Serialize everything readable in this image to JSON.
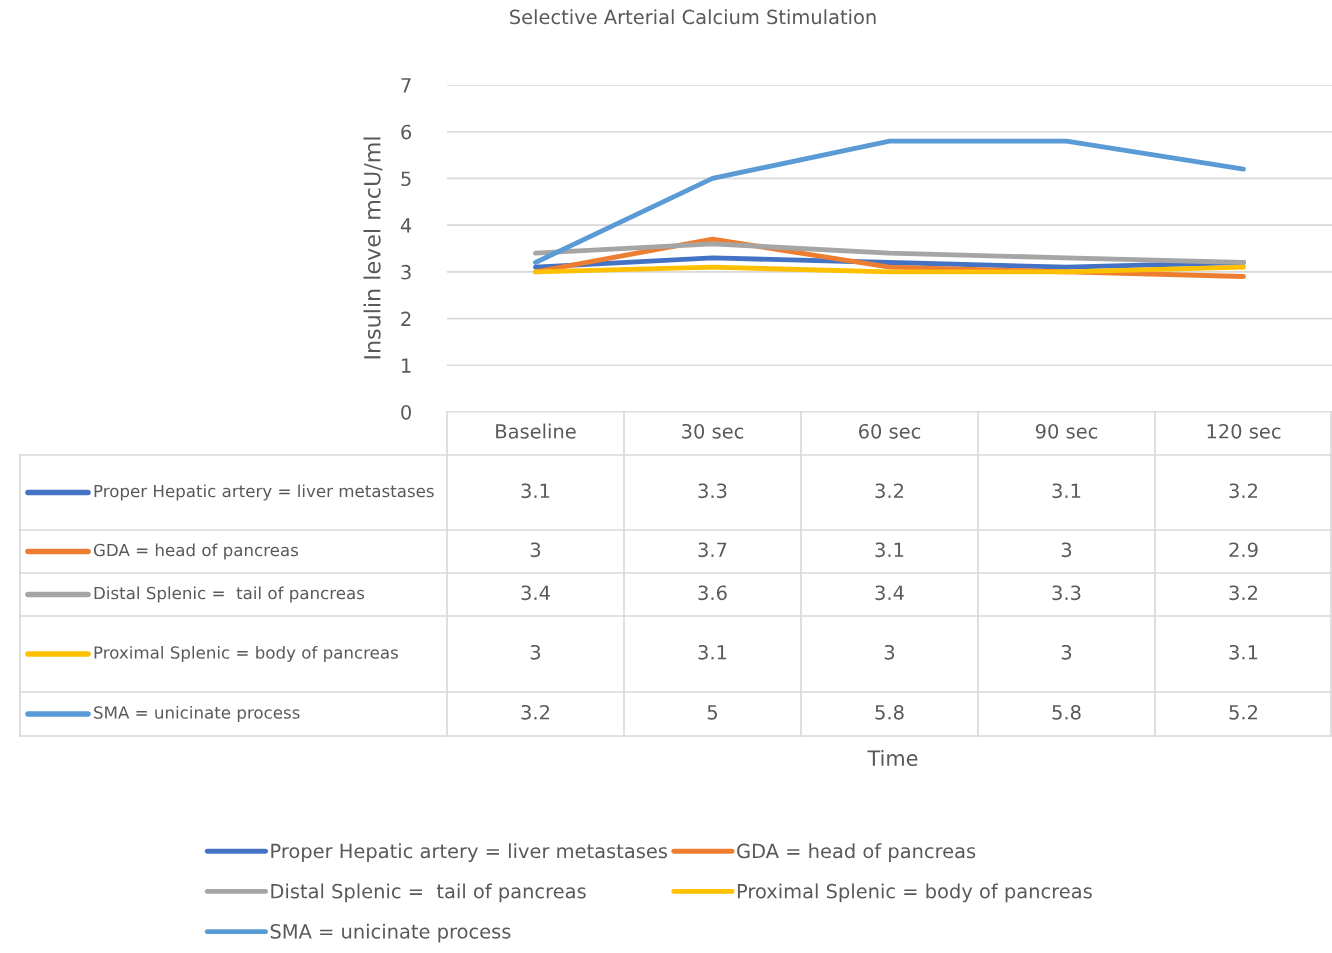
{
  "chart_data": {
    "type": "line",
    "title": "Selective Arterial Calcium Stimulation",
    "annotations": [
      "Time"
    ],
    "ylabel": "Insulin level mcU/ml",
    "categories": [
      "Baseline",
      "30 sec",
      "60 sec",
      "90 sec",
      "120 sec"
    ],
    "series": [
      {
        "name": "Proper Hepatic artery = liver metastases",
        "color": "#4472c4",
        "values": [
          3.1,
          3.3,
          3.2,
          3.1,
          3.2
        ]
      },
      {
        "name": "GDA = head of pancreas",
        "color": "#ed7d31",
        "values": [
          3,
          3.7,
          3.1,
          3,
          2.9
        ]
      },
      {
        "name": "Distal Splenic =  tail of pancreas",
        "color": "#a5a5a5",
        "values": [
          3.4,
          3.6,
          3.4,
          3.3,
          3.2
        ]
      },
      {
        "name": "Proximal Splenic = body of pancreas",
        "color": "#ffc000",
        "values": [
          3,
          3.1,
          3,
          3,
          3.1
        ]
      },
      {
        "name": "SMA = unicinate process",
        "color": "#5b9bd5",
        "values": [
          3.2,
          5,
          5.8,
          5.8,
          5.2
        ]
      }
    ],
    "ylim": [
      0,
      7
    ],
    "yticks": [
      0,
      1,
      2,
      3,
      4,
      5,
      6,
      7
    ],
    "grid": "y",
    "legend": "bottom",
    "data_labels": true
  }
}
